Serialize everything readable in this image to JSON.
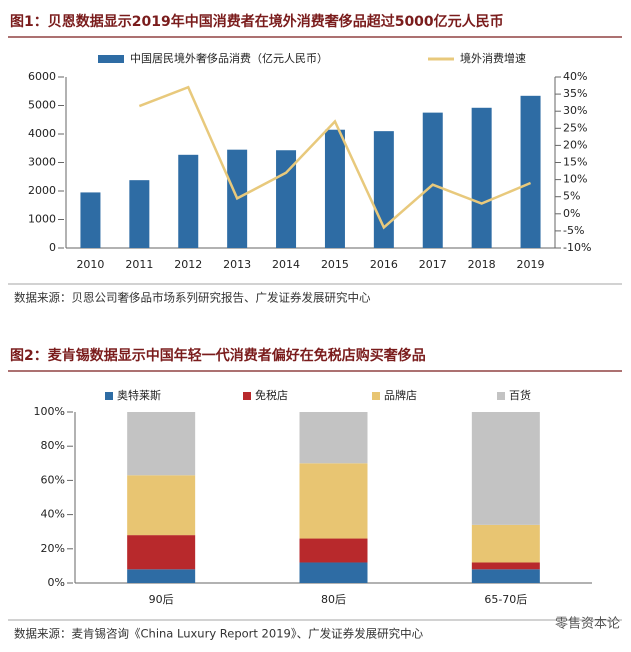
{
  "chart_data": [
    {
      "type": "bar",
      "title": "图1：贝恩数据显示2019年中国消费者在境外消费奢侈品超过5000亿元人民币",
      "categories": [
        "2010",
        "2011",
        "2012",
        "2013",
        "2014",
        "2015",
        "2016",
        "2017",
        "2018",
        "2019"
      ],
      "series": [
        {
          "name": "中国居民境外奢侈品消费（亿元人民币）",
          "color": "#2e6ca4",
          "values": [
            1950,
            2380,
            3270,
            3450,
            3430,
            4150,
            4100,
            4750,
            4920,
            5340
          ]
        },
        {
          "name": "境外消费增速",
          "type": "line",
          "axis": "y2",
          "color": "#e8c97c",
          "values": [
            null,
            31.5,
            37,
            4.5,
            12,
            27,
            -4,
            8.5,
            3,
            9
          ]
        }
      ],
      "ylim": [
        0,
        6000
      ],
      "yticks": [
        0,
        1000,
        2000,
        3000,
        4000,
        5000,
        6000
      ],
      "y2lim": [
        -10,
        40
      ],
      "y2ticks": [
        {
          "value": -10,
          "label": "-10%"
        },
        {
          "value": -5,
          "label": "-5%"
        },
        {
          "value": 0,
          "label": "0%"
        },
        {
          "value": 5,
          "label": "5%"
        },
        {
          "value": 10,
          "label": "10%"
        },
        {
          "value": 15,
          "label": "15%"
        },
        {
          "value": 20,
          "label": "20%"
        },
        {
          "value": 25,
          "label": "25%"
        },
        {
          "value": 30,
          "label": "30%"
        },
        {
          "value": 35,
          "label": "35%"
        },
        {
          "value": 40,
          "label": "40%"
        }
      ],
      "source": "数据来源：贝恩公司奢侈品市场系列研究报告、广发证券发展研究中心"
    },
    {
      "type": "stacked_bar",
      "title": "图2：麦肯锡数据显示中国年轻一代消费者偏好在免税店购买奢侈品",
      "categories": [
        "90后",
        "80后",
        "65-70后"
      ],
      "series": [
        {
          "name": "奥特莱斯",
          "color": "#2e6ca4",
          "values": [
            8,
            12,
            8
          ]
        },
        {
          "name": "免税店",
          "color": "#b8292c",
          "values": [
            20,
            14,
            4
          ]
        },
        {
          "name": "品牌店",
          "color": "#e8c572",
          "values": [
            35,
            44,
            22
          ]
        },
        {
          "name": "百货",
          "color": "#c3c3c3",
          "values": [
            37,
            30,
            66
          ]
        }
      ],
      "ylim": [
        0,
        100
      ],
      "yticks": [
        {
          "value": 0,
          "label": "0%"
        },
        {
          "value": 20,
          "label": "20%"
        },
        {
          "value": 40,
          "label": "40%"
        },
        {
          "value": 60,
          "label": "60%"
        },
        {
          "value": 80,
          "label": "80%"
        },
        {
          "value": 100,
          "label": "100%"
        }
      ],
      "source": "数据来源：麦肯锡咨询《China Luxury Report 2019》、广发证券发展研究中心"
    }
  ],
  "watermark": "零售资本论"
}
